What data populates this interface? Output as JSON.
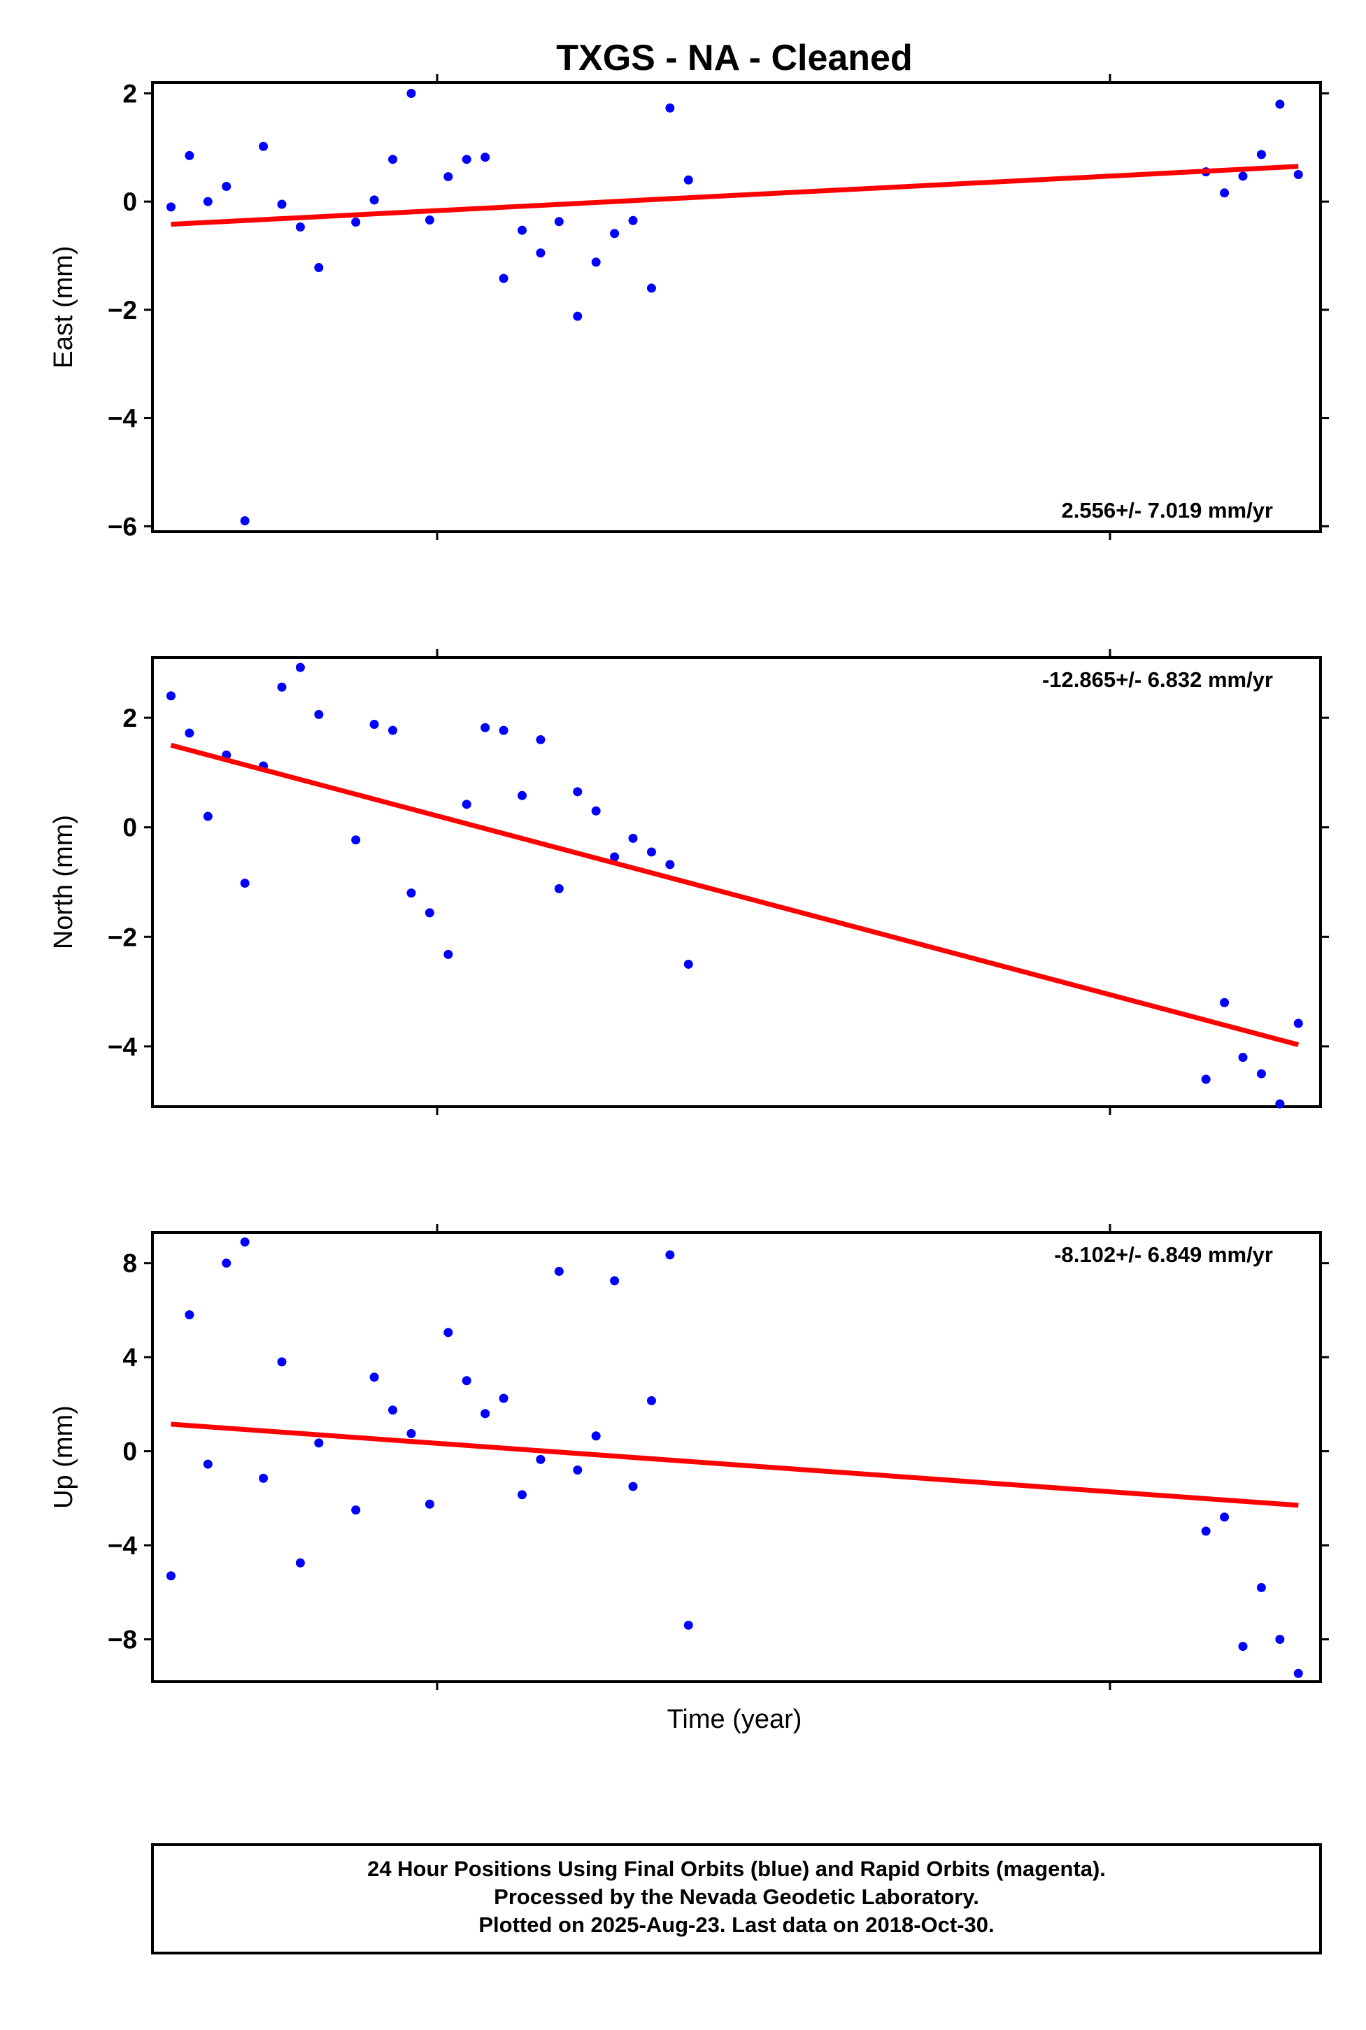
{
  "title": "TXGS  - NA - Cleaned",
  "xlabel": "Time (year)",
  "footer": {
    "line1": "24 Hour Positions Using Final Orbits (blue) and Rapid Orbits (magenta).",
    "line2": "Processed by the Nevada Geodetic Laboratory.",
    "line3": "Plotted on 2025-Aug-23. Last data on 2018-Oct-30."
  },
  "colors": {
    "final_orbits": "#0000ff",
    "fit_line": "#ff0000",
    "frame": "#000000"
  },
  "chart_data": [
    {
      "type": "scatter",
      "ylabel": "East (mm)",
      "rate_label": "2.556+/- 7.019 mm/yr",
      "rate_position": "bottom-right",
      "ylim": [
        -6.1,
        2.2
      ],
      "yticks": [
        2,
        0,
        -2,
        -4,
        -6
      ],
      "series": [
        {
          "x": [
            1,
            2,
            3,
            4,
            5,
            6,
            7,
            8,
            9,
            11,
            12,
            13,
            14,
            15,
            16,
            17,
            18,
            19,
            20,
            21,
            22,
            23,
            24,
            25,
            26,
            27,
            28,
            29,
            57,
            58,
            59,
            60,
            61,
            62
          ],
          "y": [
            -0.1,
            0.85,
            0,
            0.28,
            -5.9,
            1.02,
            -0.05,
            -0.47,
            -1.22,
            -0.38,
            0.03,
            0.78,
            2.0,
            -0.34,
            0.46,
            0.78,
            0.82,
            -1.42,
            -0.53,
            -0.95,
            -0.37,
            -2.12,
            -1.12,
            -0.59,
            -0.35,
            -1.6,
            1.73,
            0.4,
            0.55,
            0.16,
            0.47,
            0.87,
            1.8,
            0.5
          ]
        }
      ],
      "fit": {
        "y_start": -0.42,
        "y_end": 0.65
      }
    },
    {
      "type": "scatter",
      "ylabel": "North (mm)",
      "rate_label": "-12.865+/- 6.832 mm/yr",
      "rate_position": "top-right",
      "ylim": [
        -5.1,
        3.1
      ],
      "yticks": [
        2,
        0,
        -2,
        -4
      ],
      "series": [
        {
          "x": [
            1,
            2,
            3,
            4,
            5,
            6,
            7,
            8,
            9,
            11,
            12,
            13,
            14,
            15,
            16,
            17,
            18,
            19,
            20,
            21,
            22,
            23,
            24,
            25,
            26,
            27,
            28,
            29,
            57,
            58,
            59,
            60,
            61,
            62
          ],
          "y": [
            2.4,
            1.72,
            0.2,
            1.32,
            -1.02,
            1.12,
            2.56,
            2.92,
            2.06,
            -0.23,
            1.88,
            1.77,
            -1.2,
            -1.56,
            -2.32,
            0.42,
            1.82,
            1.77,
            0.58,
            1.6,
            -1.12,
            0.65,
            0.3,
            -0.54,
            -0.2,
            -0.45,
            -0.68,
            -2.5,
            -4.6,
            -3.2,
            -4.2,
            -4.5,
            -5.05,
            -3.58
          ]
        }
      ],
      "fit": {
        "y_start": 1.5,
        "y_end": -3.97
      }
    },
    {
      "type": "scatter",
      "ylabel": "Up (mm)",
      "rate_label": "-8.102+/- 6.849 mm/yr",
      "rate_position": "top-right",
      "ylim": [
        -9.8,
        9.3
      ],
      "yticks": [
        8,
        4,
        0,
        -4,
        -8
      ],
      "series": [
        {
          "x": [
            1,
            2,
            3,
            4,
            5,
            6,
            7,
            8,
            9,
            11,
            12,
            13,
            14,
            15,
            16,
            17,
            18,
            19,
            20,
            21,
            22,
            23,
            24,
            25,
            26,
            27,
            28,
            29,
            57,
            58,
            59,
            60,
            61,
            62
          ],
          "y": [
            -5.3,
            5.8,
            -0.55,
            8.0,
            8.9,
            -1.15,
            3.8,
            -4.75,
            0.35,
            -2.5,
            3.15,
            1.75,
            0.75,
            -2.25,
            5.05,
            3.0,
            1.6,
            2.25,
            -1.85,
            -0.35,
            7.65,
            -0.8,
            0.65,
            7.25,
            -1.5,
            2.15,
            8.35,
            -7.4,
            -3.4,
            -2.8,
            -8.3,
            -5.8,
            -8.0,
            -9.45
          ]
        }
      ],
      "fit": {
        "y_start": 1.15,
        "y_end": -2.3
      }
    }
  ]
}
